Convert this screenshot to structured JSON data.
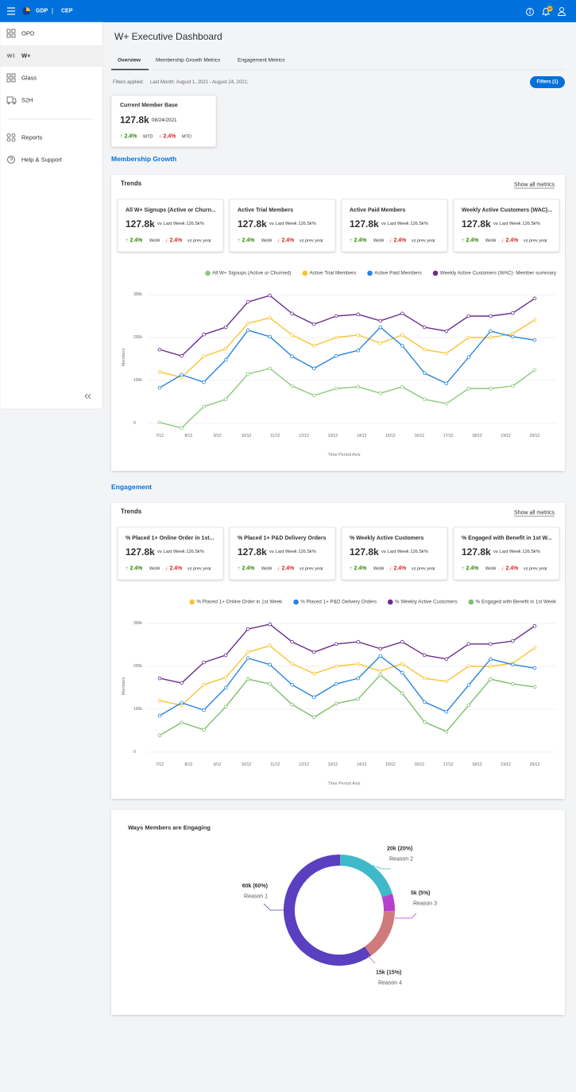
{
  "header": {
    "app": "GDP",
    "module": "CEP",
    "notifications": "10"
  },
  "sidebar": {
    "items": [
      "OPD",
      "W+",
      "Glass",
      "S2H"
    ],
    "bottom_items": [
      "Reports",
      "Help & Support"
    ]
  },
  "page": {
    "title": "W+ Executive Dashboard",
    "tabs": [
      "Overview",
      "Membership Growth Metrics",
      "Engagement Metrics"
    ],
    "filters_label": "Filters applied:",
    "filters_value": "Last Month: August 1, 2021 - August 24, 2021;",
    "filters_button": "Filters (1)"
  },
  "member_base": {
    "title": "Current Member Base",
    "value": "127.8k",
    "date": "08/24/2021",
    "up": "↑ 2.4%",
    "up_label": "WTD",
    "down": "↓ 2.4%",
    "down_label": "MTD"
  },
  "membership_growth": {
    "heading": "Membership Growth",
    "panel_title": "Trends",
    "link": "Show all metrics",
    "cards": [
      {
        "title": "All W+ Signups (Active or Churn...",
        "value": "127.8k",
        "compare": "vs Last Week 126.5k%",
        "up": "↑ 2.4%",
        "up_label": "WoW",
        "down": "↓ 2.4%",
        "down_label": "vs prev year"
      },
      {
        "title": "Active Trial Members",
        "value": "127.8k",
        "compare": "vs Last Week 126.5k%",
        "up": "↑ 2.4%",
        "up_label": "WoW",
        "down": "↓ 2.4%",
        "down_label": "vs prev year"
      },
      {
        "title": "Active Paid Members",
        "value": "127.8k",
        "compare": "vs Last Week 126.5k%",
        "up": "↑ 2.4%",
        "up_label": "WoW",
        "down": "↓ 2.4%",
        "down_label": "vs prev year"
      },
      {
        "title": "Weekly Active Customers (WAC)...",
        "value": "127.8k",
        "compare": "vs Last Week 126.5k%",
        "up": "↑ 2.4%",
        "up_label": "WoW",
        "down": "↓ 2.4%",
        "down_label": "vs prev year"
      }
    ]
  },
  "engagement": {
    "heading": "Engagement",
    "panel_title": "Trends",
    "link": "Show all metrics",
    "cards": [
      {
        "title": "% Placed 1+ Online Order in 1st...",
        "value": "127.8k",
        "compare": "vs Last Week 126.5k%",
        "up": "↑ 2.4%",
        "up_label": "WoW",
        "down": "↓ 2.4%",
        "down_label": "vs prev year"
      },
      {
        "title": "% Placed 1+ P&D Delivery Orders",
        "value": "127.8k",
        "compare": "vs Last Week 126.5k%",
        "up": "↑ 2.4%",
        "up_label": "WoW",
        "down": "↓ 2.4%",
        "down_label": "vs prev year"
      },
      {
        "title": "% Weekly Active Customers",
        "value": "127.8k",
        "compare": "vs Last Week 126.5k%",
        "up": "↑ 2.4%",
        "up_label": "WoW",
        "down": "↓ 2.4%",
        "down_label": "vs prev year"
      },
      {
        "title": "% Engaged with Benefit in 1st W...",
        "value": "127.8k",
        "compare": "vs Last Week 126.5k%",
        "up": "↑ 2.4%",
        "up_label": "WoW",
        "down": "↓ 2.4%",
        "down_label": "vs prev year"
      }
    ]
  },
  "chart_data": [
    {
      "type": "line",
      "ylabel": "Members",
      "xlabel": "Time Period Axis",
      "grid": true,
      "x": [
        0,
        0.76,
        1.53,
        2.29,
        3.06,
        3.82,
        4.59,
        5.35,
        6.12,
        6.88,
        7.65,
        8.41,
        9.18,
        9.94,
        10.71,
        11.47,
        12.24,
        13
      ],
      "xlim": [
        0,
        13
      ],
      "xticks": [
        {
          "value": 0,
          "label": "7/12"
        },
        {
          "value": 1,
          "label": "8/12"
        },
        {
          "value": 2,
          "label": "9/12"
        },
        {
          "value": 3,
          "label": "10/12"
        },
        {
          "value": 4,
          "label": "11/12"
        },
        {
          "value": 5,
          "label": "12/12"
        },
        {
          "value": 6,
          "label": "13/12"
        },
        {
          "value": 7,
          "label": "14/12"
        },
        {
          "value": 8,
          "label": "15/12"
        },
        {
          "value": 9,
          "label": "16/12"
        },
        {
          "value": 10,
          "label": "17/12"
        },
        {
          "value": 11,
          "label": "18/12"
        },
        {
          "value": 12,
          "label": "19/12"
        },
        {
          "value": 13,
          "label": "20/12"
        }
      ],
      "ylim": [
        0,
        300000
      ],
      "yticks": [
        0,
        {
          "value": 100000,
          "label": "100k"
        },
        {
          "value": 200000,
          "label": "200k"
        },
        {
          "value": 300000,
          "label": "300k"
        }
      ],
      "series": [
        {
          "name": "All W+ Signups (Active or Churned)",
          "color": "#8cc97b",
          "values": [
            2000,
            -11000,
            39000,
            56000,
            115000,
            128000,
            87000,
            65000,
            81000,
            85000,
            70000,
            85000,
            56000,
            46000,
            81000,
            81000,
            87000,
            124000
          ]
        },
        {
          "name": "Active Trial Members",
          "color": "#f7c433",
          "values": [
            120000,
            107000,
            156000,
            174000,
            233000,
            246000,
            206000,
            181000,
            200000,
            206000,
            187000,
            206000,
            172000,
            163000,
            200000,
            200000,
            209000,
            241000
          ]
        },
        {
          "name": "Active Paid Members",
          "color": "#2684e0",
          "values": [
            83000,
            113000,
            96000,
            148000,
            217000,
            202000,
            156000,
            128000,
            157000,
            170000,
            224000,
            181000,
            117000,
            93000,
            154000,
            215000,
            202000,
            194000
          ]
        },
        {
          "name": "Weekly Active Customers (WAC)- Member summary",
          "color": "#6a2c8c",
          "values": [
            172000,
            157000,
            207000,
            224000,
            283000,
            298000,
            256000,
            231000,
            250000,
            254000,
            239000,
            256000,
            224000,
            215000,
            250000,
            250000,
            257000,
            291000
          ]
        }
      ]
    },
    {
      "type": "line",
      "ylabel": "Members",
      "xlabel": "Time Period Axis",
      "grid": true,
      "x": [
        0,
        0.76,
        1.53,
        2.29,
        3.06,
        3.82,
        4.59,
        5.35,
        6.12,
        6.88,
        7.65,
        8.41,
        9.18,
        9.94,
        10.71,
        11.47,
        12.24,
        13
      ],
      "xlim": [
        0,
        13
      ],
      "xticks": [
        {
          "value": 0,
          "label": "7/12"
        },
        {
          "value": 1,
          "label": "8/12"
        },
        {
          "value": 2,
          "label": "9/12"
        },
        {
          "value": 3,
          "label": "10/12"
        },
        {
          "value": 4,
          "label": "11/12"
        },
        {
          "value": 5,
          "label": "12/12"
        },
        {
          "value": 6,
          "label": "13/12"
        },
        {
          "value": 7,
          "label": "14/12"
        },
        {
          "value": 8,
          "label": "15/12"
        },
        {
          "value": 9,
          "label": "16/12"
        },
        {
          "value": 10,
          "label": "17/12"
        },
        {
          "value": 11,
          "label": "18/12"
        },
        {
          "value": 12,
          "label": "19/12"
        },
        {
          "value": 13,
          "label": "20/12"
        }
      ],
      "ylim": [
        0,
        300000
      ],
      "yticks": [
        0,
        {
          "value": 100000,
          "label": "100k"
        },
        {
          "value": 200000,
          "label": "200k"
        },
        {
          "value": 300000,
          "label": "300k"
        }
      ],
      "series": [
        {
          "name": "% Placed 1+ Online Order in 1st Week",
          "color": "#f7c433",
          "values": [
            120000,
            109000,
            157000,
            174000,
            233000,
            248000,
            206000,
            183000,
            200000,
            206000,
            189000,
            206000,
            172000,
            165000,
            200000,
            200000,
            207000,
            243000
          ]
        },
        {
          "name": "% Placed 1+ P&D Delivery Orders",
          "color": "#2684e0",
          "values": [
            85000,
            115000,
            98000,
            150000,
            219000,
            204000,
            157000,
            128000,
            159000,
            172000,
            224000,
            185000,
            117000,
            94000,
            156000,
            217000,
            204000,
            196000
          ]
        },
        {
          "name": "% Weekly Active Customers",
          "color": "#6a2c8c",
          "values": [
            172000,
            161000,
            209000,
            226000,
            287000,
            298000,
            257000,
            233000,
            252000,
            257000,
            241000,
            257000,
            226000,
            217000,
            252000,
            252000,
            259000,
            294000
          ]
        },
        {
          "name": "% Engaged with Benefit in 1st Week",
          "color": "#7cbf6a",
          "values": [
            39000,
            69000,
            52000,
            106000,
            170000,
            159000,
            111000,
            81000,
            113000,
            124000,
            180000,
            137000,
            70000,
            48000,
            109000,
            170000,
            159000,
            152000
          ]
        }
      ]
    },
    {
      "type": "pie",
      "title": "Ways Members are Engaging",
      "categories": [
        "Reason 1",
        "Reason 2",
        "Reason 3",
        "Reason 4"
      ],
      "values": [
        60,
        20,
        5,
        15
      ],
      "value_labels": [
        "60k (60%)",
        "20k (20%)",
        "5k (5%)",
        "15k (15%)"
      ],
      "colors": [
        "#5a3fc0",
        "#3fb8c7",
        "#b73fcf",
        "#d07b7b"
      ]
    }
  ]
}
